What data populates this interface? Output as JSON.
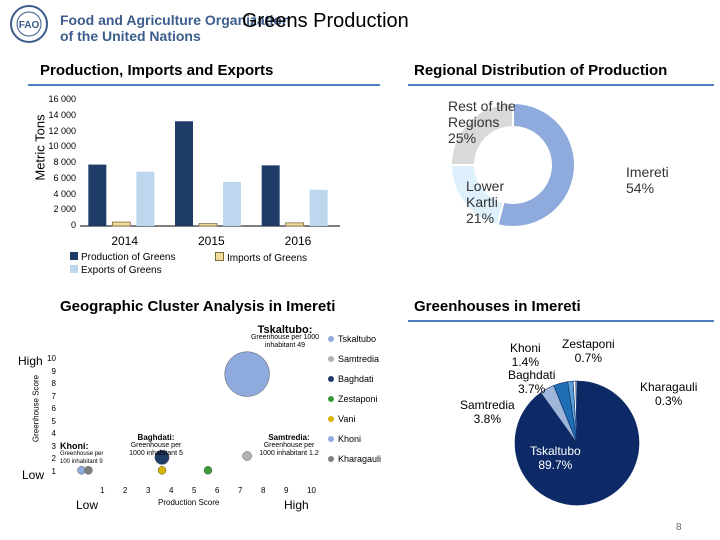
{
  "header": {
    "org_name_line1": "Food and Agriculture Organization",
    "org_name_line2": "of the United Nations",
    "logo_letters": "FAO",
    "title": "Greens Production"
  },
  "colors": {
    "production": "#1f3b68",
    "imports": "#f5d99a",
    "exports": "#bdd7ee",
    "accent_rule": "#4f7fbf",
    "imereti": "#8faadc",
    "lower_kartli": "#ddf0fb",
    "rest": "#d9d9d9"
  },
  "chart_data": [
    {
      "type": "bar",
      "title": "Production, Imports and Exports",
      "ylabel": "Metric Tons",
      "xlabel": "",
      "categories": [
        "2014",
        "2015",
        "2016"
      ],
      "ylim": [
        0,
        16000
      ],
      "yticks": [
        "16 000",
        "14 000",
        "12 000",
        "10 000",
        "8 000",
        "6 000",
        "4 000",
        "2 000",
        "0"
      ],
      "series": [
        {
          "name": "Production of Greens",
          "color": "#1f3b68",
          "values": [
            7800,
            13300,
            7700
          ]
        },
        {
          "name": "Imports of Greens",
          "color": "#f5d99a",
          "values": [
            500,
            300,
            400
          ]
        },
        {
          "name": "Exports of Greens",
          "color": "#bdd7ee",
          "values": [
            6900,
            5600,
            4600
          ]
        }
      ]
    },
    {
      "type": "pie",
      "title": "Regional Distribution of Production",
      "slices": [
        {
          "label": "Imereti",
          "value": 54,
          "text": "Imereti 54%",
          "color": "#8faadc"
        },
        {
          "label": "Lower Kartli",
          "value": 21,
          "text": "Lower Kartli 21%",
          "color": "#ddf0fb"
        },
        {
          "label": "Rest of the Regions",
          "value": 25,
          "text": "Rest of the Regions 25%",
          "color": "#d9d9d9"
        }
      ]
    },
    {
      "type": "scatter",
      "title": "Geographic Cluster Analysis in Imereti",
      "xlabel": "Production Score",
      "ylabel": "Greenhouse Score",
      "xlim": [
        0,
        10
      ],
      "ylim": [
        0,
        10
      ],
      "x_low": "Low",
      "x_high": "High",
      "y_low": "Low",
      "y_high": "High",
      "points": [
        {
          "name": "Tskaltubo",
          "x": 7.7,
          "y": 8.3,
          "size": 49,
          "color": "#8faadc",
          "label": "Tskaltubo:",
          "note": "Greenhouse per 1000 inhabitant 49"
        },
        {
          "name": "Samtredia",
          "x": 7.7,
          "y": 2.0,
          "size": 2,
          "color": "#b0b0b0",
          "label": "Samtredia:",
          "note": "Greenhouse per 1000 inhabitant 1.2"
        },
        {
          "name": "Baghdati",
          "x": 4.0,
          "y": 1.9,
          "size": 5,
          "color": "#1f3b68",
          "label": "Baghdati:",
          "note": "Greenhouse per 1000 inhabitant 5"
        },
        {
          "name": "Zestaponi",
          "x": 6.0,
          "y": 0.9,
          "size": 1,
          "color": "#3a9a3a",
          "label": "",
          "note": ""
        },
        {
          "name": "Vani",
          "x": 4.0,
          "y": 0.9,
          "size": 1,
          "color": "#d6b400",
          "label": "",
          "note": ""
        },
        {
          "name": "Khoni",
          "x": 0.5,
          "y": 0.9,
          "size": 1,
          "color": "#8faadc",
          "label": "Khoni:",
          "note": "Greenhouse per 100 inhabitant 9"
        },
        {
          "name": "Kharagauli",
          "x": 0.8,
          "y": 0.9,
          "size": 1,
          "color": "#808080",
          "label": "",
          "note": ""
        }
      ],
      "legend": [
        "Tskaltubo",
        "Samtredia",
        "Baghdati",
        "Zestaponi",
        "Vani",
        "Khoni",
        "Kharagauli"
      ],
      "xticks": [
        "1",
        "2",
        "3",
        "4",
        "5",
        "6",
        "7",
        "8",
        "9",
        "10"
      ],
      "yticks": [
        "10",
        "9",
        "8",
        "7",
        "6",
        "5",
        "4",
        "3",
        "2",
        "1"
      ]
    },
    {
      "type": "pie",
      "title": "Greenhouses in Imereti",
      "slices": [
        {
          "label": "Tskaltubo",
          "value": 89.7,
          "text1": "Tskaltubo",
          "text2": "89.7%",
          "color": "#0d2a66"
        },
        {
          "label": "Samtredia",
          "value": 3.8,
          "text1": "Samtredia",
          "text2": "3.8%",
          "color": "#9fb5d9"
        },
        {
          "label": "Baghdati",
          "value": 3.7,
          "text1": "Baghdati",
          "text2": "3.7%",
          "color": "#1f6fb5"
        },
        {
          "label": "Khoni",
          "value": 1.4,
          "text1": "Khoni",
          "text2": "1.4%",
          "color": "#5aa0d8"
        },
        {
          "label": "Zestaponi",
          "value": 0.7,
          "text1": "Zestaponi",
          "text2": "0.7%",
          "color": "#ffffff"
        },
        {
          "label": "Kharagauli",
          "value": 0.3,
          "text1": "Kharagauli",
          "text2": "0.3%",
          "color": "#bdd7ee"
        }
      ]
    }
  ],
  "footer": {
    "page_number": "8"
  }
}
